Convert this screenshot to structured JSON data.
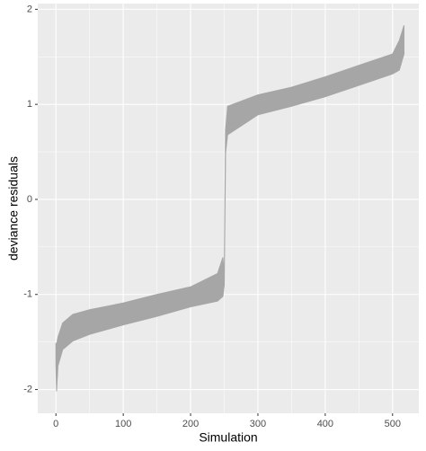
{
  "chart_data": {
    "type": "ribbon",
    "x_label": "Simulation",
    "y_label": "deviance residuals",
    "x": [
      0,
      1,
      3,
      10,
      25,
      50,
      100,
      150,
      200,
      240,
      248,
      250,
      252,
      255,
      300,
      350,
      400,
      450,
      500,
      510,
      517
    ],
    "series": [
      {
        "name": "lower",
        "color": "#a6a6a6",
        "values": [
          -1.73,
          -2.02,
          -1.75,
          -1.58,
          -1.49,
          -1.42,
          -1.32,
          -1.23,
          -1.13,
          -1.07,
          -1.02,
          -0.9,
          0.49,
          0.68,
          0.89,
          0.98,
          1.08,
          1.2,
          1.32,
          1.36,
          1.53
        ]
      },
      {
        "name": "upper",
        "color": "#a6a6a6",
        "values": [
          -1.51,
          -1.53,
          -1.45,
          -1.3,
          -1.21,
          -1.16,
          -1.09,
          -1.0,
          -0.92,
          -0.78,
          -0.61,
          -0.8,
          0.73,
          0.98,
          1.1,
          1.18,
          1.29,
          1.41,
          1.53,
          1.67,
          1.83
        ]
      }
    ],
    "xlim": [
      -27,
      539
    ],
    "ylim": [
      -2.25,
      2.06
    ],
    "xticks": [
      0,
      100,
      200,
      300,
      400,
      500
    ],
    "yticks": [
      -2,
      -1,
      0,
      1,
      2
    ],
    "grid": true
  }
}
